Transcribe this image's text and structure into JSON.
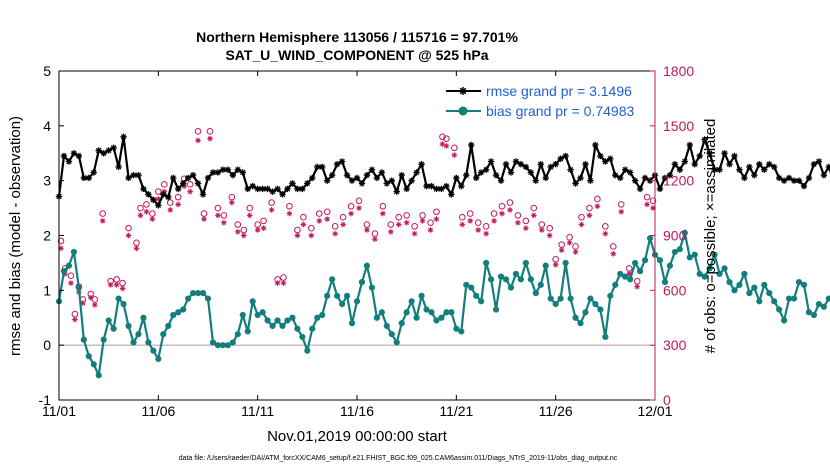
{
  "chart_data": {
    "type": "line",
    "title_line1": "Northern Hemisphere 113056 / 115716 = 97.701%",
    "title_line2": "SAT_U_WIND_COMPONENT @ 525 hPa",
    "xlabel": "Nov.01,2019 00:00:00 start",
    "ylabel": "rmse and bias (model - observation)",
    "y2label": "# of obs: o=possible; ×=assimilated",
    "xlim": [
      0,
      30
    ],
    "ylim": [
      -1,
      5
    ],
    "y2lim": [
      0,
      1800
    ],
    "x_ticks": [
      {
        "value": 0,
        "label": "11/01"
      },
      {
        "value": 5,
        "label": "11/06"
      },
      {
        "value": 10,
        "label": "11/11"
      },
      {
        "value": 15,
        "label": "11/16"
      },
      {
        "value": 20,
        "label": "11/21"
      },
      {
        "value": 25,
        "label": "11/26"
      },
      {
        "value": 30,
        "label": "12/01"
      }
    ],
    "y_ticks": [
      {
        "value": -1,
        "label": "-1"
      },
      {
        "value": 0,
        "label": "0"
      },
      {
        "value": 1,
        "label": "1"
      },
      {
        "value": 2,
        "label": "2"
      },
      {
        "value": 3,
        "label": "3"
      },
      {
        "value": 4,
        "label": "4"
      },
      {
        "value": 5,
        "label": "5"
      }
    ],
    "y2_ticks": [
      {
        "value": 0,
        "label": "0"
      },
      {
        "value": 300,
        "label": "300"
      },
      {
        "value": 600,
        "label": "600"
      },
      {
        "value": 900,
        "label": "900"
      },
      {
        "value": 1200,
        "label": "1200"
      },
      {
        "value": 1500,
        "label": "1500"
      },
      {
        "value": 1800,
        "label": "1800"
      }
    ],
    "x_step_days": 0.25,
    "series": [
      {
        "name": "rmse",
        "legend": "rmse grand pr = 3.1496",
        "color": "#000000",
        "marker": "asterisk",
        "axis": "left",
        "values": [
          2.71,
          3.45,
          3.35,
          3.5,
          3.45,
          3.05,
          3.05,
          3.15,
          3.55,
          3.5,
          3.55,
          3.6,
          3.25,
          3.8,
          3.05,
          3.1,
          3.1,
          2.85,
          2.75,
          2.65,
          2.55,
          2.75,
          2.7,
          3.05,
          2.85,
          2.95,
          3.05,
          3.1,
          2.95,
          2.75,
          3.05,
          3.15,
          3.15,
          3.2,
          3.2,
          3.1,
          3.2,
          3.15,
          2.85,
          2.9,
          2.85,
          2.85,
          2.85,
          2.8,
          2.85,
          2.75,
          2.85,
          2.95,
          2.85,
          2.85,
          2.95,
          3.05,
          3.25,
          3.25,
          3.0,
          3.1,
          3.3,
          3.35,
          3.1,
          3.0,
          3.05,
          2.95,
          3.1,
          3.2,
          3.05,
          3.15,
          2.95,
          3.0,
          2.8,
          3.1,
          2.85,
          3.0,
          3.15,
          3.3,
          2.9,
          2.9,
          2.85,
          2.85,
          2.9,
          2.75,
          3.05,
          2.9,
          3.1,
          3.65,
          3.05,
          3.15,
          3.2,
          3.35,
          3.1,
          3.0,
          3.3,
          3.15,
          3.35,
          3.3,
          3.25,
          3.15,
          3.0,
          3.3,
          3.05,
          3.25,
          3.3,
          3.4,
          3.45,
          3.2,
          2.95,
          3.05,
          3.3,
          3.0,
          3.65,
          3.45,
          3.35,
          3.4,
          3.1,
          3.05,
          3.2,
          3.15,
          3.0,
          2.85,
          3.05,
          3.0,
          3.1,
          2.85,
          3.05,
          3.1,
          3.3,
          3.2,
          3.35,
          3.65,
          3.3,
          3.45,
          3.75,
          3.5,
          3.2,
          3.2,
          3.5,
          3.3,
          3.45,
          3.2,
          3.05,
          3.25,
          3.1,
          3.3,
          3.2,
          3.3,
          3.25,
          3.05,
          3.0,
          3.05,
          3.0,
          3.0,
          2.9,
          3.05,
          3.3,
          3.35,
          3.1,
          3.25,
          3.0,
          2.95,
          2.85,
          3.05,
          3.15,
          3.1,
          3.25,
          3.0,
          2.85,
          3.1,
          3.3,
          3.1,
          3.0,
          3.2,
          3.1,
          3.35,
          3.15,
          3.1,
          3.35,
          3.35,
          3.25,
          3.0,
          3.65,
          3.5,
          3.15,
          3.7,
          3.35,
          3.25,
          2.9,
          2.85,
          3.15,
          3.2,
          3.25,
          3.3,
          3.35,
          3.35
        ]
      },
      {
        "name": "bias",
        "legend": "bias grand pr = 0.74983",
        "color": "#137f7d",
        "marker": "circle",
        "axis": "left",
        "values": [
          0.8,
          1.35,
          1.45,
          1.7,
          1.05,
          0.1,
          -0.2,
          -0.35,
          -0.55,
          0.1,
          0.45,
          0.3,
          0.85,
          0.75,
          0.35,
          0.05,
          0.2,
          0.5,
          0.05,
          -0.1,
          -0.25,
          0.2,
          0.35,
          0.55,
          0.6,
          0.65,
          0.85,
          0.95,
          0.95,
          0.95,
          0.85,
          0.05,
          0.0,
          0.0,
          0.0,
          0.05,
          0.2,
          0.55,
          0.25,
          0.8,
          0.55,
          0.6,
          0.45,
          0.35,
          0.45,
          0.35,
          0.45,
          0.5,
          0.3,
          0.15,
          -0.1,
          0.3,
          0.5,
          0.55,
          0.9,
          1.2,
          0.9,
          0.75,
          0.9,
          0.4,
          0.8,
          1.15,
          1.45,
          1.05,
          0.5,
          0.6,
          0.35,
          0.2,
          0.05,
          0.4,
          0.6,
          0.8,
          0.5,
          0.9,
          0.65,
          0.6,
          0.45,
          0.5,
          0.6,
          0.6,
          0.3,
          0.25,
          1.1,
          1.05,
          0.9,
          0.8,
          1.5,
          1.2,
          0.65,
          1.25,
          1.2,
          1.05,
          1.3,
          1.2,
          1.5,
          1.2,
          0.95,
          1.1,
          1.45,
          0.85,
          0.75,
          0.85,
          1.5,
          0.85,
          0.5,
          0.4,
          0.6,
          0.85,
          0.75,
          0.65,
          0.15,
          0.9,
          1.1,
          1.3,
          1.25,
          1.2,
          1.5,
          1.35,
          1.55,
          1.95,
          1.65,
          1.55,
          1.15,
          1.45,
          1.7,
          1.75,
          2.05,
          1.6,
          1.65,
          1.3,
          1.25,
          1.4,
          1.65,
          1.3,
          1.4,
          1.15,
          1.0,
          1.1,
          1.3,
          0.95,
          1.05,
          0.8,
          1.1,
          0.95,
          0.8,
          0.65,
          0.45,
          0.85,
          0.85,
          1.15,
          1.1,
          0.6,
          0.55,
          0.75,
          0.7,
          0.85,
          0.85,
          1.15,
          0.2,
          -0.15,
          0.5,
          0.2,
          0.7,
          0.5,
          0.05,
          0.65,
          0.85,
          1.05,
          1.1,
          1.15,
          1.0,
          1.2,
          1.15,
          0.85,
          0.65,
          0.55,
          0.95,
          1.05,
          0.85,
          0.3,
          0.75,
          1.1,
          1.25,
          1.35,
          1.4,
          1.25,
          1.3,
          1.0,
          0.55,
          0.25,
          0.22
        ]
      }
    ],
    "obs_possible": [
      {
        "x": 0.1,
        "y": 870
      },
      {
        "x": 0.3,
        "y": 720
      },
      {
        "x": 0.6,
        "y": 680
      },
      {
        "x": 0.8,
        "y": 470
      },
      {
        "x": 1.0,
        "y": 620
      },
      {
        "x": 1.2,
        "y": 550
      },
      {
        "x": 1.6,
        "y": 580
      },
      {
        "x": 1.8,
        "y": 550
      },
      {
        "x": 2.2,
        "y": 1020
      },
      {
        "x": 2.6,
        "y": 650
      },
      {
        "x": 2.9,
        "y": 660
      },
      {
        "x": 3.2,
        "y": 640
      },
      {
        "x": 3.5,
        "y": 940
      },
      {
        "x": 3.9,
        "y": 860
      },
      {
        "x": 4.1,
        "y": 1050
      },
      {
        "x": 4.4,
        "y": 1070
      },
      {
        "x": 4.7,
        "y": 1020
      },
      {
        "x": 5.0,
        "y": 1140
      },
      {
        "x": 5.3,
        "y": 1180
      },
      {
        "x": 5.6,
        "y": 1080
      },
      {
        "x": 6.0,
        "y": 1110
      },
      {
        "x": 6.3,
        "y": 1210
      },
      {
        "x": 6.6,
        "y": 1180
      },
      {
        "x": 7.0,
        "y": 1470
      },
      {
        "x": 7.3,
        "y": 1020
      },
      {
        "x": 7.6,
        "y": 1470
      },
      {
        "x": 8.0,
        "y": 1050
      },
      {
        "x": 8.3,
        "y": 1010
      },
      {
        "x": 8.7,
        "y": 1110
      },
      {
        "x": 9.0,
        "y": 960
      },
      {
        "x": 9.3,
        "y": 930
      },
      {
        "x": 9.6,
        "y": 1050
      },
      {
        "x": 10.0,
        "y": 960
      },
      {
        "x": 10.3,
        "y": 980
      },
      {
        "x": 10.7,
        "y": 1080
      },
      {
        "x": 11.0,
        "y": 660
      },
      {
        "x": 11.3,
        "y": 670
      },
      {
        "x": 11.6,
        "y": 1060
      },
      {
        "x": 12.0,
        "y": 930
      },
      {
        "x": 12.3,
        "y": 1000
      },
      {
        "x": 12.7,
        "y": 940
      },
      {
        "x": 13.1,
        "y": 1020
      },
      {
        "x": 13.5,
        "y": 1030
      },
      {
        "x": 13.9,
        "y": 950
      },
      {
        "x": 14.3,
        "y": 1000
      },
      {
        "x": 14.7,
        "y": 1060
      },
      {
        "x": 15.1,
        "y": 1090
      },
      {
        "x": 15.5,
        "y": 960
      },
      {
        "x": 15.9,
        "y": 910
      },
      {
        "x": 16.3,
        "y": 1060
      },
      {
        "x": 16.7,
        "y": 960
      },
      {
        "x": 17.1,
        "y": 1000
      },
      {
        "x": 17.5,
        "y": 1010
      },
      {
        "x": 17.9,
        "y": 950
      },
      {
        "x": 18.3,
        "y": 1010
      },
      {
        "x": 18.7,
        "y": 970
      },
      {
        "x": 19.0,
        "y": 1030
      },
      {
        "x": 19.3,
        "y": 1440
      },
      {
        "x": 19.5,
        "y": 1430
      },
      {
        "x": 19.9,
        "y": 1380
      },
      {
        "x": 20.3,
        "y": 1000
      },
      {
        "x": 20.7,
        "y": 1020
      },
      {
        "x": 21.1,
        "y": 970
      },
      {
        "x": 21.5,
        "y": 950
      },
      {
        "x": 21.9,
        "y": 1020
      },
      {
        "x": 22.3,
        "y": 1060
      },
      {
        "x": 22.7,
        "y": 1080
      },
      {
        "x": 23.1,
        "y": 1010
      },
      {
        "x": 23.5,
        "y": 980
      },
      {
        "x": 23.9,
        "y": 1050
      },
      {
        "x": 24.3,
        "y": 960
      },
      {
        "x": 24.7,
        "y": 940
      },
      {
        "x": 25.0,
        "y": 770
      },
      {
        "x": 25.3,
        "y": 850
      },
      {
        "x": 25.7,
        "y": 890
      },
      {
        "x": 26.0,
        "y": 840
      },
      {
        "x": 26.3,
        "y": 1000
      },
      {
        "x": 26.7,
        "y": 1050
      },
      {
        "x": 27.1,
        "y": 1100
      },
      {
        "x": 27.5,
        "y": 950
      },
      {
        "x": 27.9,
        "y": 840
      },
      {
        "x": 28.3,
        "y": 1070
      },
      {
        "x": 28.7,
        "y": 720
      },
      {
        "x": 29.1,
        "y": 650
      },
      {
        "x": 29.6,
        "y": 1110
      },
      {
        "x": 29.9,
        "y": 1090
      }
    ],
    "obs_assimilated": [
      {
        "x": 0.1,
        "y": 830
      },
      {
        "x": 0.3,
        "y": 690
      },
      {
        "x": 0.6,
        "y": 640
      },
      {
        "x": 0.8,
        "y": 440
      },
      {
        "x": 1.0,
        "y": 590
      },
      {
        "x": 1.2,
        "y": 530
      },
      {
        "x": 1.6,
        "y": 560
      },
      {
        "x": 1.8,
        "y": 520
      },
      {
        "x": 2.2,
        "y": 980
      },
      {
        "x": 2.6,
        "y": 630
      },
      {
        "x": 2.9,
        "y": 630
      },
      {
        "x": 3.2,
        "y": 610
      },
      {
        "x": 3.5,
        "y": 900
      },
      {
        "x": 3.9,
        "y": 830
      },
      {
        "x": 4.1,
        "y": 1010
      },
      {
        "x": 4.4,
        "y": 1030
      },
      {
        "x": 4.7,
        "y": 990
      },
      {
        "x": 5.0,
        "y": 1100
      },
      {
        "x": 5.3,
        "y": 1140
      },
      {
        "x": 5.6,
        "y": 1040
      },
      {
        "x": 6.0,
        "y": 1070
      },
      {
        "x": 6.3,
        "y": 1170
      },
      {
        "x": 6.6,
        "y": 1140
      },
      {
        "x": 7.0,
        "y": 1420
      },
      {
        "x": 7.3,
        "y": 990
      },
      {
        "x": 7.6,
        "y": 1430
      },
      {
        "x": 8.0,
        "y": 1010
      },
      {
        "x": 8.3,
        "y": 970
      },
      {
        "x": 8.7,
        "y": 1080
      },
      {
        "x": 9.0,
        "y": 920
      },
      {
        "x": 9.3,
        "y": 900
      },
      {
        "x": 9.6,
        "y": 1010
      },
      {
        "x": 10.0,
        "y": 930
      },
      {
        "x": 10.3,
        "y": 940
      },
      {
        "x": 10.7,
        "y": 1040
      },
      {
        "x": 11.0,
        "y": 640
      },
      {
        "x": 11.3,
        "y": 640
      },
      {
        "x": 11.6,
        "y": 1020
      },
      {
        "x": 12.0,
        "y": 900
      },
      {
        "x": 12.3,
        "y": 960
      },
      {
        "x": 12.7,
        "y": 900
      },
      {
        "x": 13.1,
        "y": 980
      },
      {
        "x": 13.5,
        "y": 990
      },
      {
        "x": 13.9,
        "y": 910
      },
      {
        "x": 14.3,
        "y": 960
      },
      {
        "x": 14.7,
        "y": 1020
      },
      {
        "x": 15.1,
        "y": 1050
      },
      {
        "x": 15.5,
        "y": 930
      },
      {
        "x": 15.9,
        "y": 880
      },
      {
        "x": 16.3,
        "y": 1020
      },
      {
        "x": 16.7,
        "y": 920
      },
      {
        "x": 17.1,
        "y": 960
      },
      {
        "x": 17.5,
        "y": 970
      },
      {
        "x": 17.9,
        "y": 910
      },
      {
        "x": 18.3,
        "y": 980
      },
      {
        "x": 18.7,
        "y": 930
      },
      {
        "x": 19.0,
        "y": 990
      },
      {
        "x": 19.3,
        "y": 1400
      },
      {
        "x": 19.5,
        "y": 1390
      },
      {
        "x": 19.9,
        "y": 1340
      },
      {
        "x": 20.3,
        "y": 960
      },
      {
        "x": 20.7,
        "y": 980
      },
      {
        "x": 21.1,
        "y": 930
      },
      {
        "x": 21.5,
        "y": 910
      },
      {
        "x": 21.9,
        "y": 980
      },
      {
        "x": 22.3,
        "y": 1020
      },
      {
        "x": 22.7,
        "y": 1040
      },
      {
        "x": 23.1,
        "y": 970
      },
      {
        "x": 23.5,
        "y": 940
      },
      {
        "x": 23.9,
        "y": 1010
      },
      {
        "x": 24.3,
        "y": 930
      },
      {
        "x": 24.7,
        "y": 900
      },
      {
        "x": 25.0,
        "y": 740
      },
      {
        "x": 25.3,
        "y": 820
      },
      {
        "x": 25.7,
        "y": 860
      },
      {
        "x": 26.0,
        "y": 810
      },
      {
        "x": 26.3,
        "y": 960
      },
      {
        "x": 26.7,
        "y": 1010
      },
      {
        "x": 27.1,
        "y": 1060
      },
      {
        "x": 27.5,
        "y": 910
      },
      {
        "x": 27.9,
        "y": 800
      },
      {
        "x": 28.3,
        "y": 1030
      },
      {
        "x": 28.7,
        "y": 690
      },
      {
        "x": 29.1,
        "y": 620
      },
      {
        "x": 29.6,
        "y": 1070
      },
      {
        "x": 29.9,
        "y": 1050
      }
    ],
    "zero_line": 0,
    "zero_line_color": "#c8a0a8",
    "obs_color": "#c2185b",
    "right_axis_color": "#c2185b",
    "legend_position": "top-right",
    "legend_text_color": "#1f5fd6",
    "grid": false
  },
  "footer": "data file: /Users/raeder/DAI/ATM_forcXX/CAM6_setup/f.e21.FHIST_BGC.f09_025.CAM6assim.011/Diags_NTrS_2019-11/obs_diag_output.nc"
}
